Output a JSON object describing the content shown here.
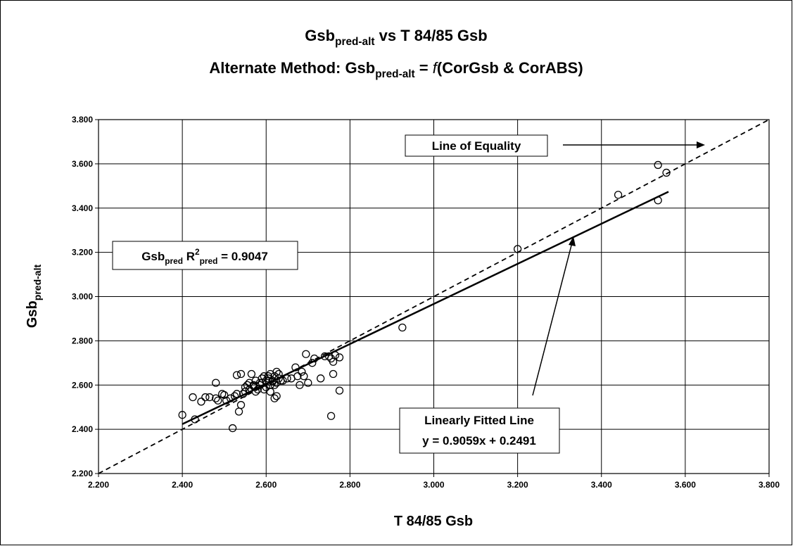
{
  "chart_data": {
    "type": "scatter",
    "title": {
      "line1": [
        "Gsb",
        "pred-alt",
        " vs T 84/85 Gsb"
      ],
      "line2": [
        "Alternate Method: Gsb",
        "pred-alt",
        " = ",
        "f",
        "(CorGsb & CorABS)"
      ]
    },
    "x_label": "T 84/85 Gsb",
    "y_label": [
      "Gsb",
      "pred-alt"
    ],
    "annotations": {
      "equality": "Line of Equality",
      "r2": [
        "Gsb",
        "pred",
        " R",
        "2",
        "pred",
        " = 0.9047"
      ],
      "fit": [
        "Linearly Fitted Line",
        "y = 0.9059x + 0.2491"
      ]
    },
    "xlim": [
      2.2,
      3.8
    ],
    "ylim": [
      2.2,
      3.8
    ],
    "xticks": [
      {
        "value": 2.2,
        "label": "2.200"
      },
      {
        "value": 2.4,
        "label": "2.400"
      },
      {
        "value": 2.6,
        "label": "2.600"
      },
      {
        "value": 2.8,
        "label": "2.800"
      },
      {
        "value": 3.0,
        "label": "3.000"
      },
      {
        "value": 3.2,
        "label": "3.200"
      },
      {
        "value": 3.4,
        "label": "3.400"
      },
      {
        "value": 3.6,
        "label": "3.600"
      },
      {
        "value": 3.8,
        "label": "3.800"
      }
    ],
    "yticks": [
      {
        "value": 2.2,
        "label": "2.200"
      },
      {
        "value": 2.4,
        "label": "2.400"
      },
      {
        "value": 2.6,
        "label": "2.600"
      },
      {
        "value": 2.8,
        "label": "2.800"
      },
      {
        "value": 3.0,
        "label": "3.000"
      },
      {
        "value": 3.2,
        "label": "3.200"
      },
      {
        "value": 3.4,
        "label": "3.400"
      },
      {
        "value": 3.6,
        "label": "3.600"
      },
      {
        "value": 3.8,
        "label": "3.800"
      }
    ],
    "grid": true,
    "series": [
      {
        "type": "scatter",
        "color": "#000000",
        "x": [
          2.4,
          2.43,
          2.425,
          2.445,
          2.455,
          2.465,
          2.48,
          2.48,
          2.485,
          2.495,
          2.5,
          2.505,
          2.515,
          2.52,
          2.525,
          2.53,
          2.53,
          2.535,
          2.54,
          2.54,
          2.545,
          2.55,
          2.555,
          2.56,
          2.565,
          2.57,
          2.575,
          2.58,
          2.585,
          2.59,
          2.595,
          2.6,
          2.6,
          2.605,
          2.61,
          2.61,
          2.615,
          2.62,
          2.62,
          2.625,
          2.63,
          2.575,
          2.585,
          2.595,
          2.605,
          2.615,
          2.625,
          2.57,
          2.59,
          2.61,
          2.63,
          2.635,
          2.56,
          2.55,
          2.62,
          2.625,
          2.64,
          2.65,
          2.66,
          2.67,
          2.675,
          2.68,
          2.685,
          2.69,
          2.695,
          2.7,
          2.71,
          2.715,
          2.73,
          2.74,
          2.75,
          2.755,
          2.755,
          2.76,
          2.76,
          2.765,
          2.775,
          2.775,
          2.925,
          3.2,
          3.44,
          3.535,
          3.535,
          3.555
        ],
        "values": [
          2.465,
          2.445,
          2.545,
          2.525,
          2.545,
          2.545,
          2.61,
          2.54,
          2.53,
          2.56,
          2.555,
          2.53,
          2.54,
          2.405,
          2.55,
          2.645,
          2.56,
          2.48,
          2.65,
          2.51,
          2.56,
          2.57,
          2.6,
          2.58,
          2.65,
          2.595,
          2.62,
          2.58,
          2.6,
          2.61,
          2.64,
          2.62,
          2.59,
          2.63,
          2.6,
          2.65,
          2.615,
          2.64,
          2.6,
          2.66,
          2.63,
          2.57,
          2.61,
          2.58,
          2.64,
          2.62,
          2.61,
          2.6,
          2.63,
          2.57,
          2.65,
          2.62,
          2.61,
          2.59,
          2.54,
          2.55,
          2.62,
          2.63,
          2.63,
          2.68,
          2.64,
          2.6,
          2.66,
          2.64,
          2.74,
          2.61,
          2.7,
          2.72,
          2.63,
          2.73,
          2.73,
          2.46,
          2.72,
          2.705,
          2.65,
          2.735,
          2.575,
          2.725,
          2.86,
          3.215,
          3.46,
          3.595,
          3.435,
          3.56
        ]
      },
      {
        "type": "line",
        "dash": true,
        "color": "#000000",
        "x": [
          2.2,
          3.8
        ],
        "values": [
          2.2,
          3.8
        ]
      },
      {
        "type": "line",
        "dash": false,
        "color": "#000000",
        "x": [
          2.4,
          3.56
        ],
        "values": [
          2.4233,
          3.4741
        ]
      }
    ]
  }
}
